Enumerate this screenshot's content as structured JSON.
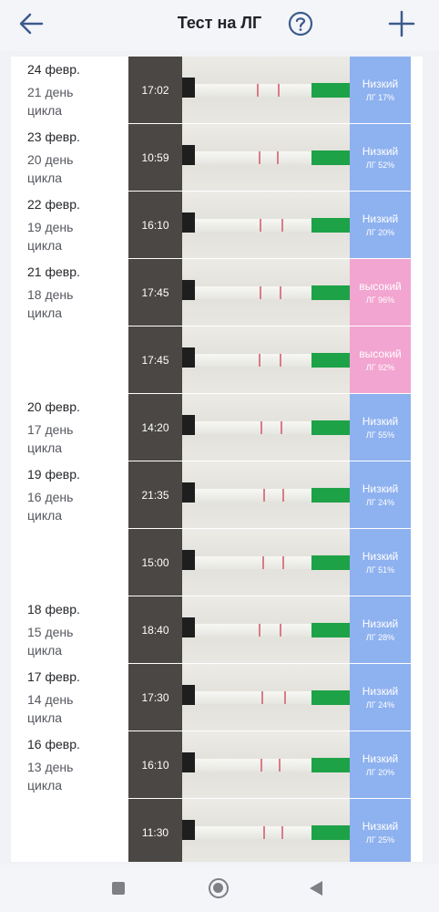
{
  "header": {
    "title": "Тест на ЛГ",
    "back_icon": "arrow-left-icon",
    "help_icon": "question-circle-icon",
    "add_icon": "plus-icon",
    "accent": "#3c5a8c"
  },
  "colors": {
    "low": "#8eb1ef",
    "high": "#f2a5d0",
    "strip_tab": "#1ea247"
  },
  "tests": [
    {
      "date": "24 февр.",
      "cycle": "21 день\nцикла",
      "time": "17:02",
      "level": "Низкий",
      "value": "ЛГ 17%",
      "status": "low"
    },
    {
      "date": "23 февр.",
      "cycle": "20 день\nцикла",
      "time": "10:59",
      "level": "Низкий",
      "value": "ЛГ 52%",
      "status": "low"
    },
    {
      "date": "22 февр.",
      "cycle": "19 день\nцикла",
      "time": "16:10",
      "level": "Низкий",
      "value": "ЛГ 20%",
      "status": "low"
    },
    {
      "date": "21 февр.",
      "cycle": "18 день\nцикла",
      "time": "17:45",
      "level": "высокий",
      "value": "ЛГ 96%",
      "status": "high"
    },
    {
      "date": "",
      "cycle": "",
      "time": "17:45",
      "level": "высокий",
      "value": "ЛГ 92%",
      "status": "high"
    },
    {
      "date": "20 февр.",
      "cycle": "17 день\nцикла",
      "time": "14:20",
      "level": "Низкий",
      "value": "ЛГ 55%",
      "status": "low"
    },
    {
      "date": "19 февр.",
      "cycle": "16 день\nцикла",
      "time": "21:35",
      "level": "Низкий",
      "value": "ЛГ 24%",
      "status": "low"
    },
    {
      "date": "",
      "cycle": "",
      "time": "15:00",
      "level": "Низкий",
      "value": "ЛГ 51%",
      "status": "low"
    },
    {
      "date": "18 февр.",
      "cycle": "15 день\nцикла",
      "time": "18:40",
      "level": "Низкий",
      "value": "ЛГ 28%",
      "status": "low"
    },
    {
      "date": "17 февр.",
      "cycle": "14 день\nцикла",
      "time": "17:30",
      "level": "Низкий",
      "value": "ЛГ 24%",
      "status": "low"
    },
    {
      "date": "16 февр.",
      "cycle": "13 день\nцикла",
      "time": "16:10",
      "level": "Низкий",
      "value": "ЛГ 20%",
      "status": "low"
    },
    {
      "date": "",
      "cycle": "",
      "time": "11:30",
      "level": "Низкий",
      "value": "ЛГ 25%",
      "status": "low"
    }
  ],
  "navbar": {
    "recents_icon": "square-icon",
    "home_icon": "circle-icon",
    "back_icon": "triangle-back-icon"
  }
}
